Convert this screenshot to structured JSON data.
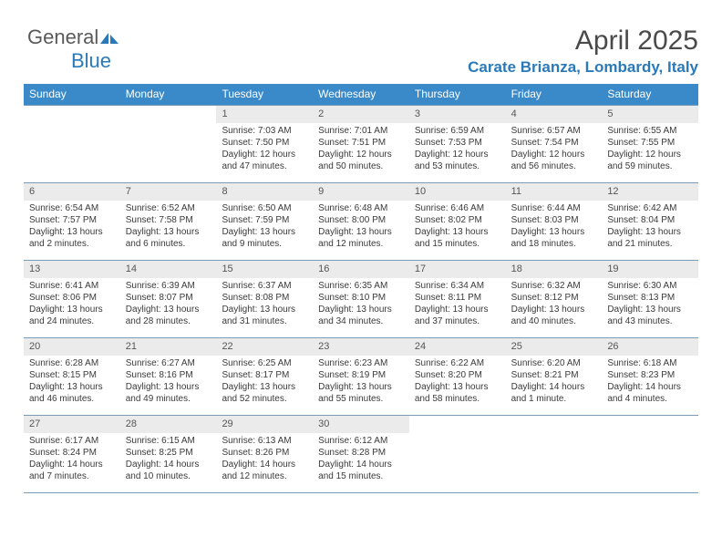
{
  "logo": {
    "part1": "General",
    "part2": "Blue"
  },
  "title": "April 2025",
  "location": "Carate Brianza, Lombardy, Italy",
  "header_bg": "#3a8ac9",
  "daynum_bg": "#ebebeb",
  "border_color": "#7a9ab5",
  "day_names": [
    "Sunday",
    "Monday",
    "Tuesday",
    "Wednesday",
    "Thursday",
    "Friday",
    "Saturday"
  ],
  "weeks": [
    [
      null,
      null,
      {
        "n": "1",
        "sr": "Sunrise: 7:03 AM",
        "ss": "Sunset: 7:50 PM",
        "dl": "Daylight: 12 hours and 47 minutes."
      },
      {
        "n": "2",
        "sr": "Sunrise: 7:01 AM",
        "ss": "Sunset: 7:51 PM",
        "dl": "Daylight: 12 hours and 50 minutes."
      },
      {
        "n": "3",
        "sr": "Sunrise: 6:59 AM",
        "ss": "Sunset: 7:53 PM",
        "dl": "Daylight: 12 hours and 53 minutes."
      },
      {
        "n": "4",
        "sr": "Sunrise: 6:57 AM",
        "ss": "Sunset: 7:54 PM",
        "dl": "Daylight: 12 hours and 56 minutes."
      },
      {
        "n": "5",
        "sr": "Sunrise: 6:55 AM",
        "ss": "Sunset: 7:55 PM",
        "dl": "Daylight: 12 hours and 59 minutes."
      }
    ],
    [
      {
        "n": "6",
        "sr": "Sunrise: 6:54 AM",
        "ss": "Sunset: 7:57 PM",
        "dl": "Daylight: 13 hours and 2 minutes."
      },
      {
        "n": "7",
        "sr": "Sunrise: 6:52 AM",
        "ss": "Sunset: 7:58 PM",
        "dl": "Daylight: 13 hours and 6 minutes."
      },
      {
        "n": "8",
        "sr": "Sunrise: 6:50 AM",
        "ss": "Sunset: 7:59 PM",
        "dl": "Daylight: 13 hours and 9 minutes."
      },
      {
        "n": "9",
        "sr": "Sunrise: 6:48 AM",
        "ss": "Sunset: 8:00 PM",
        "dl": "Daylight: 13 hours and 12 minutes."
      },
      {
        "n": "10",
        "sr": "Sunrise: 6:46 AM",
        "ss": "Sunset: 8:02 PM",
        "dl": "Daylight: 13 hours and 15 minutes."
      },
      {
        "n": "11",
        "sr": "Sunrise: 6:44 AM",
        "ss": "Sunset: 8:03 PM",
        "dl": "Daylight: 13 hours and 18 minutes."
      },
      {
        "n": "12",
        "sr": "Sunrise: 6:42 AM",
        "ss": "Sunset: 8:04 PM",
        "dl": "Daylight: 13 hours and 21 minutes."
      }
    ],
    [
      {
        "n": "13",
        "sr": "Sunrise: 6:41 AM",
        "ss": "Sunset: 8:06 PM",
        "dl": "Daylight: 13 hours and 24 minutes."
      },
      {
        "n": "14",
        "sr": "Sunrise: 6:39 AM",
        "ss": "Sunset: 8:07 PM",
        "dl": "Daylight: 13 hours and 28 minutes."
      },
      {
        "n": "15",
        "sr": "Sunrise: 6:37 AM",
        "ss": "Sunset: 8:08 PM",
        "dl": "Daylight: 13 hours and 31 minutes."
      },
      {
        "n": "16",
        "sr": "Sunrise: 6:35 AM",
        "ss": "Sunset: 8:10 PM",
        "dl": "Daylight: 13 hours and 34 minutes."
      },
      {
        "n": "17",
        "sr": "Sunrise: 6:34 AM",
        "ss": "Sunset: 8:11 PM",
        "dl": "Daylight: 13 hours and 37 minutes."
      },
      {
        "n": "18",
        "sr": "Sunrise: 6:32 AM",
        "ss": "Sunset: 8:12 PM",
        "dl": "Daylight: 13 hours and 40 minutes."
      },
      {
        "n": "19",
        "sr": "Sunrise: 6:30 AM",
        "ss": "Sunset: 8:13 PM",
        "dl": "Daylight: 13 hours and 43 minutes."
      }
    ],
    [
      {
        "n": "20",
        "sr": "Sunrise: 6:28 AM",
        "ss": "Sunset: 8:15 PM",
        "dl": "Daylight: 13 hours and 46 minutes."
      },
      {
        "n": "21",
        "sr": "Sunrise: 6:27 AM",
        "ss": "Sunset: 8:16 PM",
        "dl": "Daylight: 13 hours and 49 minutes."
      },
      {
        "n": "22",
        "sr": "Sunrise: 6:25 AM",
        "ss": "Sunset: 8:17 PM",
        "dl": "Daylight: 13 hours and 52 minutes."
      },
      {
        "n": "23",
        "sr": "Sunrise: 6:23 AM",
        "ss": "Sunset: 8:19 PM",
        "dl": "Daylight: 13 hours and 55 minutes."
      },
      {
        "n": "24",
        "sr": "Sunrise: 6:22 AM",
        "ss": "Sunset: 8:20 PM",
        "dl": "Daylight: 13 hours and 58 minutes."
      },
      {
        "n": "25",
        "sr": "Sunrise: 6:20 AM",
        "ss": "Sunset: 8:21 PM",
        "dl": "Daylight: 14 hours and 1 minute."
      },
      {
        "n": "26",
        "sr": "Sunrise: 6:18 AM",
        "ss": "Sunset: 8:23 PM",
        "dl": "Daylight: 14 hours and 4 minutes."
      }
    ],
    [
      {
        "n": "27",
        "sr": "Sunrise: 6:17 AM",
        "ss": "Sunset: 8:24 PM",
        "dl": "Daylight: 14 hours and 7 minutes."
      },
      {
        "n": "28",
        "sr": "Sunrise: 6:15 AM",
        "ss": "Sunset: 8:25 PM",
        "dl": "Daylight: 14 hours and 10 minutes."
      },
      {
        "n": "29",
        "sr": "Sunrise: 6:13 AM",
        "ss": "Sunset: 8:26 PM",
        "dl": "Daylight: 14 hours and 12 minutes."
      },
      {
        "n": "30",
        "sr": "Sunrise: 6:12 AM",
        "ss": "Sunset: 8:28 PM",
        "dl": "Daylight: 14 hours and 15 minutes."
      },
      null,
      null,
      null
    ]
  ]
}
